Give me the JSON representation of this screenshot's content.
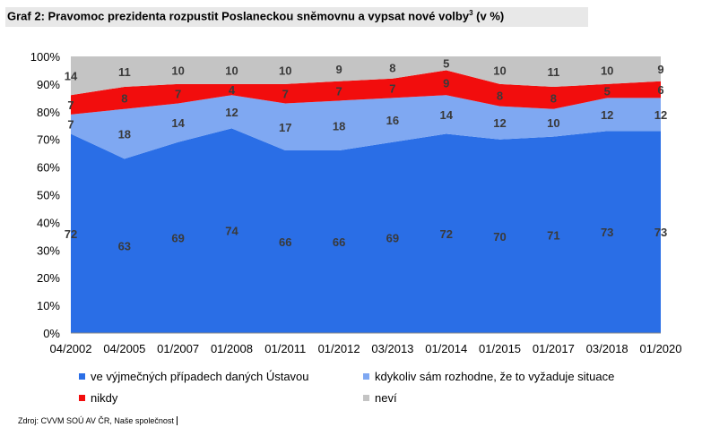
{
  "title": {
    "main": "Graf 2: Pravomoc prezidenta rozpustit Poslaneckou sněmovnu a vypsat nové volby",
    "superscript": "3",
    "suffix": " (v %)"
  },
  "source": "Zdroj: CVVM SOÚ AV ČR, Naše společnost",
  "chart_data": {
    "type": "area",
    "stacked": true,
    "categories": [
      "04/2002",
      "04/2005",
      "01/2007",
      "01/2008",
      "01/2011",
      "01/2012",
      "03/2013",
      "01/2014",
      "01/2015",
      "01/2017",
      "03/2018",
      "01/2020"
    ],
    "series": [
      {
        "name": "ve výjmečných případech daných Ústavou",
        "color": "#2a6ee6",
        "values": [
          72,
          63,
          69,
          74,
          66,
          66,
          69,
          72,
          70,
          71,
          73,
          73
        ]
      },
      {
        "name": "kdykoliv sám rozhodne, že to vyžaduje situace",
        "color": "#7fa8f2",
        "values": [
          7,
          18,
          14,
          12,
          17,
          18,
          16,
          14,
          12,
          10,
          12,
          12
        ]
      },
      {
        "name": "nikdy",
        "color": "#f20d0d",
        "values": [
          7,
          8,
          7,
          4,
          7,
          7,
          7,
          9,
          8,
          8,
          5,
          6
        ]
      },
      {
        "name": "neví",
        "color": "#c4c4c4",
        "values": [
          14,
          11,
          10,
          10,
          10,
          9,
          8,
          5,
          10,
          11,
          10,
          9
        ]
      }
    ],
    "y_ticks": [
      "0%",
      "10%",
      "20%",
      "30%",
      "40%",
      "50%",
      "60%",
      "70%",
      "80%",
      "90%",
      "100%"
    ],
    "ylim": [
      0,
      100
    ],
    "legend_position": "bottom"
  }
}
